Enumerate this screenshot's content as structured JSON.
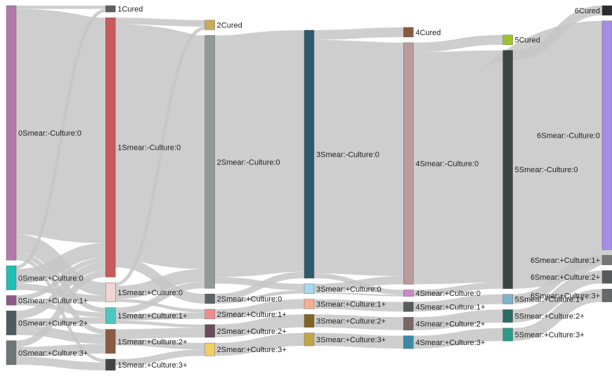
{
  "chart_data": {
    "type": "sankey",
    "title": "",
    "stages": [
      0,
      1,
      2,
      3,
      4,
      5,
      6
    ],
    "nodes": [
      {
        "id": "0Smear:-Culture:0",
        "stage": 0,
        "color": "#b47aaa"
      },
      {
        "id": "0Smear:+Culture:0",
        "stage": 0,
        "color": "#1fbfb3"
      },
      {
        "id": "0Smear:+Culture:1+",
        "stage": 0,
        "color": "#8e5b86"
      },
      {
        "id": "0Smear:+Culture:2+",
        "stage": 0,
        "color": "#4e5b63"
      },
      {
        "id": "0Smear:+Culture:3+",
        "stage": 0,
        "color": "#6f7678"
      },
      {
        "id": "1Cured",
        "stage": 1,
        "color": "#5f5f5f"
      },
      {
        "id": "1Smear:-Culture:0",
        "stage": 1,
        "color": "#c85a5a"
      },
      {
        "id": "1Smear:+Culture:0",
        "stage": 1,
        "color": "#f1d4d4"
      },
      {
        "id": "1Smear:+Culture:1+",
        "stage": 1,
        "color": "#4cc6c2"
      },
      {
        "id": "1Smear:+Culture:2+",
        "stage": 1,
        "color": "#8a5a43"
      },
      {
        "id": "1Smear:+Culture:3+",
        "stage": 1,
        "color": "#3e4646"
      },
      {
        "id": "2Cured",
        "stage": 2,
        "color": "#c8aa58"
      },
      {
        "id": "2Smear:-Culture:0",
        "stage": 2,
        "color": "#909a98"
      },
      {
        "id": "2Smear:+Culture:0",
        "stage": 2,
        "color": "#5d6466"
      },
      {
        "id": "2Smear:+Culture:1+",
        "stage": 2,
        "color": "#f08c8c"
      },
      {
        "id": "2Smear:+Culture:2+",
        "stage": 2,
        "color": "#6b4a5e"
      },
      {
        "id": "2Smear:+Culture:3+",
        "stage": 2,
        "color": "#f0d060"
      },
      {
        "id": "3Smear:-Culture:0",
        "stage": 3,
        "color": "#2e5a6c"
      },
      {
        "id": "3Smear:+Culture:0",
        "stage": 3,
        "color": "#a8d8f0"
      },
      {
        "id": "3Smear:+Culture:1+",
        "stage": 3,
        "color": "#f7ad90"
      },
      {
        "id": "3Smear:+Culture:2+",
        "stage": 3,
        "color": "#7f6524"
      },
      {
        "id": "3Smear:+Culture:3+",
        "stage": 3,
        "color": "#c3a544"
      },
      {
        "id": "4Cured",
        "stage": 4,
        "color": "#8a5a3c"
      },
      {
        "id": "4Smear:-Culture:0",
        "stage": 4,
        "color": "#b89c9c"
      },
      {
        "id": "4Smear:+Culture:0",
        "stage": 4,
        "color": "#c88bc6"
      },
      {
        "id": "4Smear:+Culture:1+",
        "stage": 4,
        "color": "#575c5e"
      },
      {
        "id": "4Smear:+Culture:2+",
        "stage": 4,
        "color": "#7a6868"
      },
      {
        "id": "4Smear:+Culture:3+",
        "stage": 4,
        "color": "#3d8aa7"
      },
      {
        "id": "5Cured",
        "stage": 5,
        "color": "#9cc22a"
      },
      {
        "id": "5Smear:-Culture:0",
        "stage": 5,
        "color": "#3e4444"
      },
      {
        "id": "5Smear:+Culture:1+",
        "stage": 5,
        "color": "#7fb3c8"
      },
      {
        "id": "5Smear:+Culture:2+",
        "stage": 5,
        "color": "#2a6b63"
      },
      {
        "id": "5Smear:+Culture:3+",
        "stage": 5,
        "color": "#2a9b8a"
      },
      {
        "id": "6Cured",
        "stage": 6,
        "color": "#2b2b30"
      },
      {
        "id": "6Smear:-Culture:0",
        "stage": 6,
        "color": "#a48ee6"
      },
      {
        "id": "6Smear:+Culture:1+",
        "stage": 6,
        "color": "#777777"
      },
      {
        "id": "6Smear:+Culture:2+",
        "stage": 6,
        "color": "#555a5c"
      },
      {
        "id": "6Smear:+Culture:3+",
        "stage": 6,
        "color": "#66686a"
      }
    ],
    "links": [
      {
        "source": "0Smear:-Culture:0",
        "target": "1Cured",
        "value": 2
      },
      {
        "source": "0Smear:-Culture:0",
        "target": "1Smear:-Culture:0",
        "value": 140
      },
      {
        "source": "0Smear:-Culture:0",
        "target": "1Smear:+Culture:0",
        "value": 8
      },
      {
        "source": "0Smear:-Culture:0",
        "target": "1Smear:+Culture:1+",
        "value": 3
      },
      {
        "source": "0Smear:-Culture:0",
        "target": "1Smear:+Culture:2+",
        "value": 3
      },
      {
        "source": "0Smear:-Culture:0",
        "target": "1Smear:+Culture:3+",
        "value": 2
      },
      {
        "source": "0Smear:+Culture:0",
        "target": "1Cured",
        "value": 2
      },
      {
        "source": "0Smear:+Culture:0",
        "target": "1Smear:-Culture:0",
        "value": 9
      },
      {
        "source": "0Smear:+Culture:0",
        "target": "1Smear:+Culture:0",
        "value": 4
      },
      {
        "source": "0Smear:+Culture:1+",
        "target": "1Smear:-Culture:0",
        "value": 3
      },
      {
        "source": "0Smear:+Culture:1+",
        "target": "1Smear:+Culture:1+",
        "value": 3
      },
      {
        "source": "0Smear:+Culture:2+",
        "target": "1Smear:-Culture:0",
        "value": 5
      },
      {
        "source": "0Smear:+Culture:2+",
        "target": "1Smear:+Culture:1+",
        "value": 4
      },
      {
        "source": "0Smear:+Culture:2+",
        "target": "1Smear:+Culture:2+",
        "value": 6
      },
      {
        "source": "0Smear:+Culture:3+",
        "target": "1Smear:-Culture:0",
        "value": 4
      },
      {
        "source": "0Smear:+Culture:3+",
        "target": "1Smear:+Culture:2+",
        "value": 6
      },
      {
        "source": "0Smear:+Culture:3+",
        "target": "1Smear:+Culture:3+",
        "value": 5
      },
      {
        "source": "1Smear:-Culture:0",
        "target": "2Cured",
        "value": 4
      },
      {
        "source": "1Smear:-Culture:0",
        "target": "2Smear:-Culture:0",
        "value": 145
      },
      {
        "source": "1Smear:-Culture:0",
        "target": "2Smear:+Culture:0",
        "value": 6
      },
      {
        "source": "1Smear:+Culture:0",
        "target": "2Cured",
        "value": 2
      },
      {
        "source": "1Smear:+Culture:0",
        "target": "2Smear:-Culture:0",
        "value": 8
      },
      {
        "source": "1Smear:+Culture:0",
        "target": "2Smear:+Culture:1+",
        "value": 2
      },
      {
        "source": "1Smear:+Culture:1+",
        "target": "2Smear:-Culture:0",
        "value": 4
      },
      {
        "source": "1Smear:+Culture:1+",
        "target": "2Smear:+Culture:1+",
        "value": 4
      },
      {
        "source": "1Smear:+Culture:1+",
        "target": "2Smear:+Culture:2+",
        "value": 2
      },
      {
        "source": "1Smear:+Culture:2+",
        "target": "2Smear:+Culture:2+",
        "value": 6
      },
      {
        "source": "1Smear:+Culture:2+",
        "target": "2Smear:+Culture:3+",
        "value": 4
      },
      {
        "source": "1Smear:+Culture:3+",
        "target": "2Smear:+Culture:3+",
        "value": 4
      },
      {
        "source": "2Smear:-Culture:0",
        "target": "3Smear:-Culture:0",
        "value": 150
      },
      {
        "source": "2Smear:-Culture:0",
        "target": "3Smear:+Culture:0",
        "value": 4
      },
      {
        "source": "2Smear:+Culture:0",
        "target": "3Smear:-Culture:0",
        "value": 4
      },
      {
        "source": "2Smear:+Culture:0",
        "target": "3Smear:+Culture:0",
        "value": 2
      },
      {
        "source": "2Smear:+Culture:1+",
        "target": "3Smear:+Culture:1+",
        "value": 6
      },
      {
        "source": "2Smear:+Culture:2+",
        "target": "3Smear:+Culture:2+",
        "value": 8
      },
      {
        "source": "2Smear:+Culture:3+",
        "target": "3Smear:+Culture:3+",
        "value": 8
      },
      {
        "source": "3Smear:-Culture:0",
        "target": "4Cured",
        "value": 6
      },
      {
        "source": "3Smear:-Culture:0",
        "target": "4Smear:-Culture:0",
        "value": 145
      },
      {
        "source": "3Smear:-Culture:0",
        "target": "4Smear:+Culture:0",
        "value": 3
      },
      {
        "source": "3Smear:+Culture:0",
        "target": "4Smear:-Culture:0",
        "value": 5
      },
      {
        "source": "3Smear:+Culture:0",
        "target": "4Smear:+Culture:0",
        "value": 1
      },
      {
        "source": "3Smear:+Culture:1+",
        "target": "4Smear:+Culture:1+",
        "value": 6
      },
      {
        "source": "3Smear:+Culture:2+",
        "target": "4Smear:+Culture:2+",
        "value": 8
      },
      {
        "source": "3Smear:+Culture:3+",
        "target": "4Smear:+Culture:3+",
        "value": 8
      },
      {
        "source": "4Smear:-Culture:0",
        "target": "5Cured",
        "value": 6
      },
      {
        "source": "4Smear:-Culture:0",
        "target": "5Smear:-Culture:0",
        "value": 144
      },
      {
        "source": "4Smear:+Culture:0",
        "target": "5Smear:-Culture:0",
        "value": 4
      },
      {
        "source": "4Smear:+Culture:1+",
        "target": "5Smear:+Culture:1+",
        "value": 6
      },
      {
        "source": "4Smear:+Culture:2+",
        "target": "5Smear:+Culture:2+",
        "value": 8
      },
      {
        "source": "4Smear:+Culture:3+",
        "target": "5Smear:+Culture:3+",
        "value": 8
      },
      {
        "source": "5Smear:-Culture:0",
        "target": "6Cured",
        "value": 6
      },
      {
        "source": "5Smear:-Culture:0",
        "target": "6Smear:-Culture:0",
        "value": 142
      },
      {
        "source": "5Smear:+Culture:1+",
        "target": "6Smear:+Culture:1+",
        "value": 6
      },
      {
        "source": "5Smear:+Culture:2+",
        "target": "6Smear:+Culture:2+",
        "value": 8
      },
      {
        "source": "5Smear:+Culture:3+",
        "target": "6Smear:+Culture:3+",
        "value": 8
      }
    ]
  }
}
